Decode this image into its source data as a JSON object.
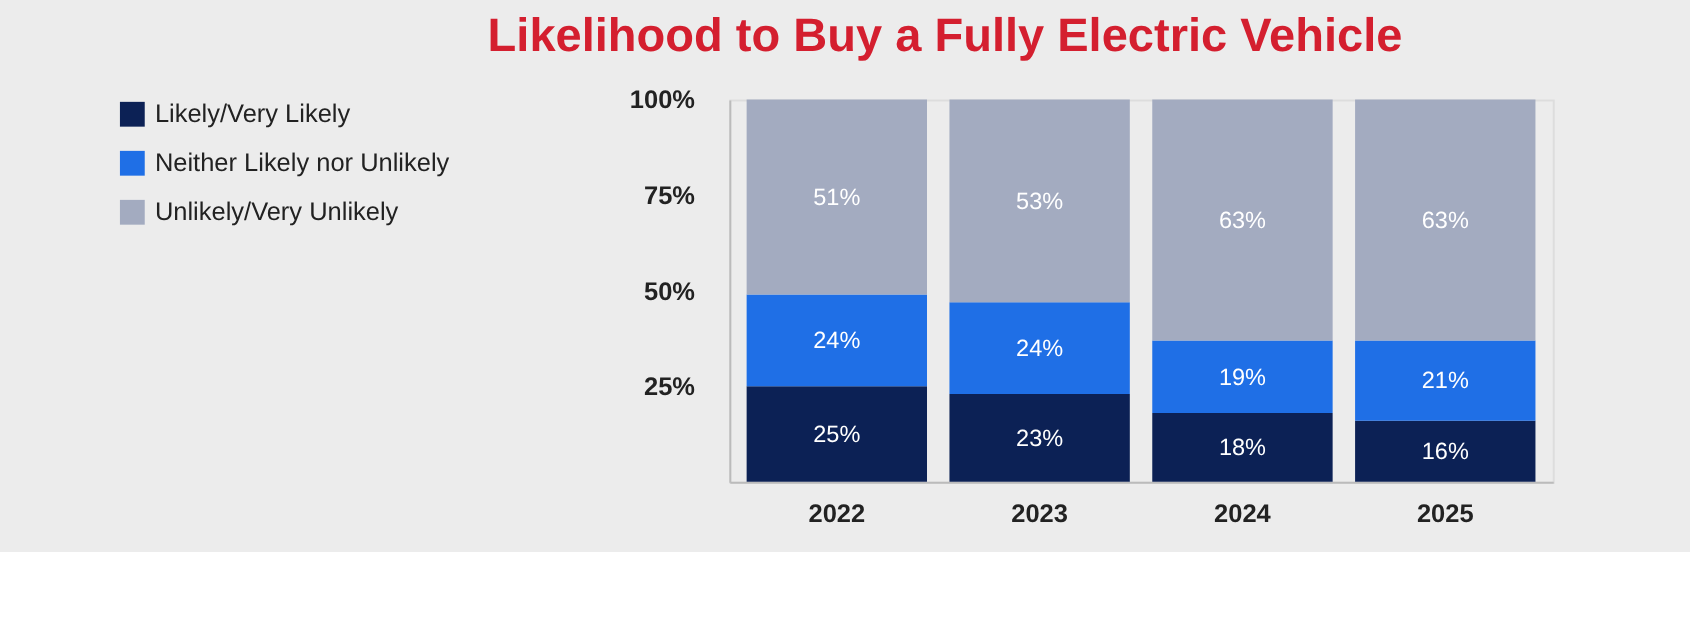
{
  "chart_data": {
    "type": "bar",
    "title": "Likelihood to Buy a Fully Electric Vehicle",
    "categories": [
      "2022",
      "2023",
      "2024",
      "2025"
    ],
    "stacked": true,
    "series": [
      {
        "name": "Likely/Very Likely",
        "color": "#0c2155",
        "values": [
          25,
          23,
          18,
          16
        ],
        "value_labels": [
          "25%",
          "23%",
          "18%",
          "16%"
        ]
      },
      {
        "name": "Neither Likely nor Unlikely",
        "color": "#1f6fe6",
        "values": [
          24,
          24,
          19,
          21
        ],
        "value_labels": [
          "24%",
          "24%",
          "19%",
          "21%"
        ]
      },
      {
        "name": "Unlikely/Very Unlikely",
        "color": "#a3abc0",
        "values": [
          51,
          53,
          63,
          63
        ],
        "value_labels": [
          "51%",
          "53%",
          "63%",
          "63%"
        ]
      }
    ],
    "ylim": [
      0,
      100
    ],
    "yticks": [
      {
        "value": 25,
        "label": "25%"
      },
      {
        "value": 50,
        "label": "50%"
      },
      {
        "value": 75,
        "label": "75%"
      },
      {
        "value": 100,
        "label": "100%"
      }
    ],
    "grid": false,
    "legend": "left"
  }
}
